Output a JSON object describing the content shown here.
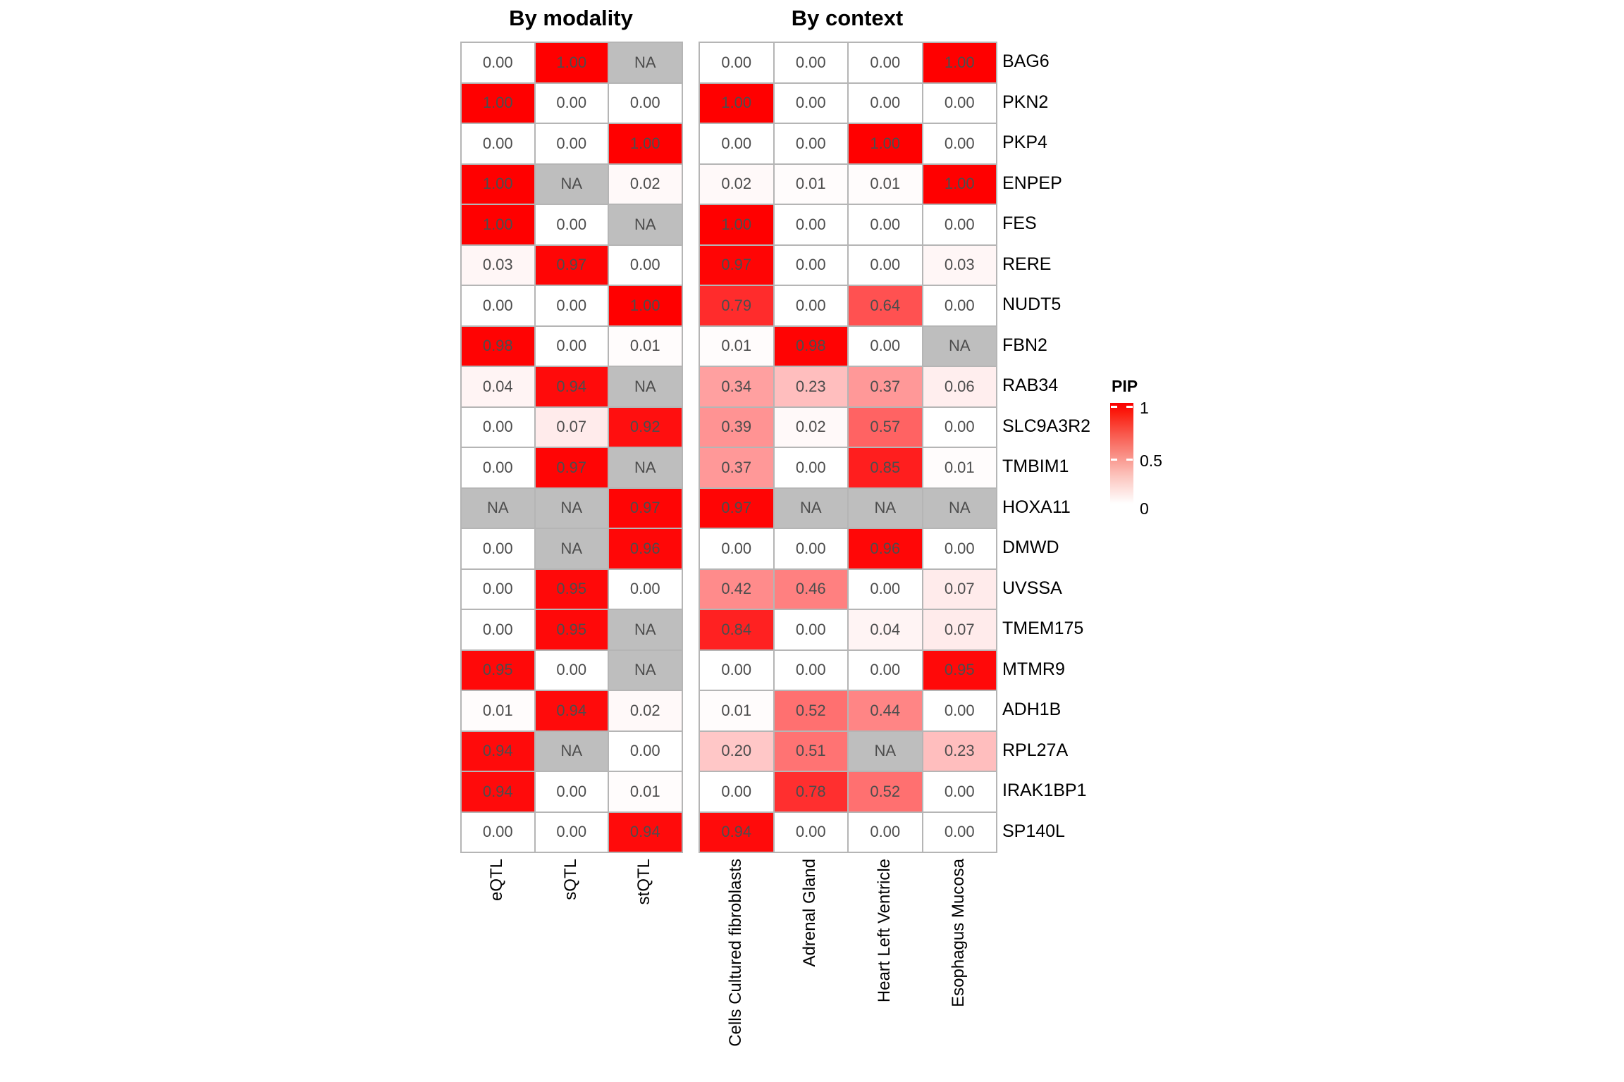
{
  "chart_data": {
    "type": "heatmap",
    "panels": [
      {
        "title": "By modality",
        "columns": [
          "eQTL",
          "sQTL",
          "stQTL"
        ]
      },
      {
        "title": "By context",
        "columns": [
          "Cells Cultured fibroblasts",
          "Adrenal Gland",
          "Heart Left Ventricle",
          "Esophagus Mucosa"
        ]
      }
    ],
    "genes": [
      "BAG6",
      "PKN2",
      "PKP4",
      "ENPEP",
      "FES",
      "RERE",
      "NUDT5",
      "FBN2",
      "RAB34",
      "SLC9A3R2",
      "TMBIM1",
      "HOXA11",
      "DMWD",
      "UVSSA",
      "TMEM175",
      "MTMR9",
      "ADH1B",
      "RPL27A",
      "IRAK1BP1",
      "SP140L"
    ],
    "values_by_modality": [
      [
        0.0,
        1.0,
        null
      ],
      [
        1.0,
        0.0,
        0.0
      ],
      [
        0.0,
        0.0,
        1.0
      ],
      [
        1.0,
        null,
        0.02
      ],
      [
        1.0,
        0.0,
        null
      ],
      [
        0.03,
        0.97,
        0.0
      ],
      [
        0.0,
        0.0,
        1.0
      ],
      [
        0.98,
        0.0,
        0.01
      ],
      [
        0.04,
        0.94,
        null
      ],
      [
        0.0,
        0.07,
        0.92
      ],
      [
        0.0,
        0.97,
        null
      ],
      [
        null,
        null,
        0.97
      ],
      [
        0.0,
        null,
        0.96
      ],
      [
        0.0,
        0.95,
        0.0
      ],
      [
        0.0,
        0.95,
        null
      ],
      [
        0.95,
        0.0,
        null
      ],
      [
        0.01,
        0.94,
        0.02
      ],
      [
        0.94,
        null,
        0.0
      ],
      [
        0.94,
        0.0,
        0.01
      ],
      [
        0.0,
        0.0,
        0.94
      ]
    ],
    "values_by_context": [
      [
        0.0,
        0.0,
        0.0,
        1.0
      ],
      [
        1.0,
        0.0,
        0.0,
        0.0
      ],
      [
        0.0,
        0.0,
        1.0,
        0.0
      ],
      [
        0.02,
        0.01,
        0.01,
        1.0
      ],
      [
        1.0,
        0.0,
        0.0,
        0.0
      ],
      [
        0.97,
        0.0,
        0.0,
        0.03
      ],
      [
        0.79,
        0.0,
        0.64,
        0.0
      ],
      [
        0.01,
        0.98,
        0.0,
        null
      ],
      [
        0.34,
        0.23,
        0.37,
        0.06
      ],
      [
        0.39,
        0.02,
        0.57,
        0.0
      ],
      [
        0.37,
        0.0,
        0.85,
        0.01
      ],
      [
        0.97,
        null,
        null,
        null
      ],
      [
        0.0,
        0.0,
        0.96,
        0.0
      ],
      [
        0.42,
        0.46,
        0.0,
        0.07
      ],
      [
        0.84,
        0.0,
        0.04,
        0.07
      ],
      [
        0.0,
        0.0,
        0.0,
        0.95
      ],
      [
        0.01,
        0.52,
        0.44,
        0.0
      ],
      [
        0.2,
        0.51,
        null,
        0.23
      ],
      [
        0.0,
        0.78,
        0.52,
        0.0
      ],
      [
        0.94,
        0.0,
        0.0,
        0.0
      ]
    ],
    "na_label": "NA",
    "value_decimals": 2,
    "legend": {
      "title": "PIP",
      "tick_labels": [
        "1",
        "0.5",
        "0"
      ],
      "ticks": [
        1,
        0.5,
        0
      ]
    },
    "colors": {
      "high": "#ff0000",
      "low": "#ffffff",
      "na": "#bebebe",
      "border": "#b5b5b5",
      "cell_text": "#4d4d4d"
    }
  }
}
